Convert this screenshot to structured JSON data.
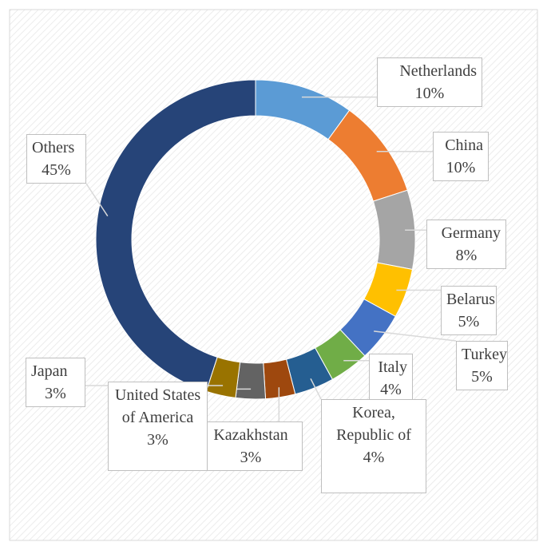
{
  "chart_data": {
    "type": "donut",
    "categories": [
      "Netherlands",
      "China",
      "Germany",
      "Belarus",
      "Turkey",
      "Italy",
      "Korea, Republic of",
      "Kazakhstan",
      "United States of America",
      "Japan",
      "Others"
    ],
    "values": [
      10,
      10,
      8,
      5,
      5,
      4,
      4,
      3,
      3,
      3,
      45
    ],
    "value_labels": [
      "10%",
      "10%",
      "8%",
      "5%",
      "5%",
      "4%",
      "4%",
      "3%",
      "3%",
      "3%",
      "45%"
    ],
    "colors": [
      "#5b9bd5",
      "#ed7d31",
      "#a5a5a5",
      "#ffc000",
      "#4472c4",
      "#70ad47",
      "#255e91",
      "#9e480e",
      "#636363",
      "#997300",
      "#264478"
    ]
  }
}
